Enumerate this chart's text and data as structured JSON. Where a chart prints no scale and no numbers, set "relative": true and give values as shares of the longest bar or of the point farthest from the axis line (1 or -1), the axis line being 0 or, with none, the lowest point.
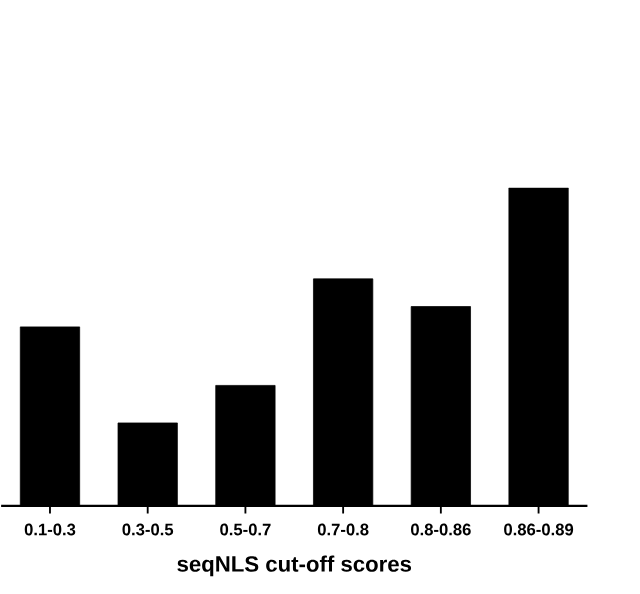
{
  "chart_data": {
    "type": "bar",
    "xlabel": "seqNLS cut-off scores",
    "categories": [
      "0.1-0.3",
      "0.3-0.5",
      "0.5-0.7",
      "0.7-0.8",
      "0.8-0.86",
      "0.86-0.89"
    ],
    "values": [
      0.563,
      0.261,
      0.379,
      0.714,
      0.627,
      1.0
    ],
    "color": "#000000",
    "relative": true
  }
}
